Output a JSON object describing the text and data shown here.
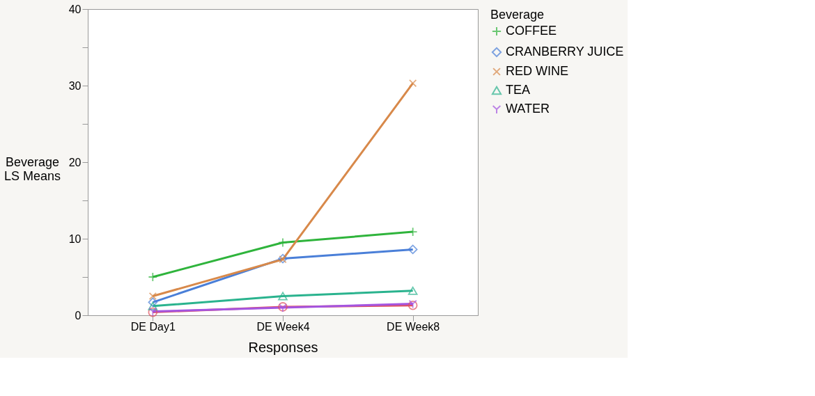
{
  "chart_data": {
    "type": "line",
    "xlabel": "Responses",
    "ylabel": "Beverage\nLS Means",
    "legend_title": "Beverage",
    "legend": "top right",
    "categories": [
      "DE Day1",
      "DE Week4",
      "DE Week8"
    ],
    "ylim": [
      0,
      40
    ],
    "yticks": [
      0,
      {
        "value": 5,
        "label": null
      },
      10,
      {
        "value": 15,
        "label": null
      },
      20,
      {
        "value": 25,
        "label": null
      },
      30,
      {
        "value": 35,
        "label": null
      },
      40
    ],
    "grid": false,
    "series": [
      {
        "color": "#e0505e",
        "marker": "circle",
        "values": [
          0.4,
          1.1,
          1.3
        ]
      },
      {
        "name": "COFFEE",
        "color": "#2fb43c",
        "marker": "plus",
        "values": [
          5.0,
          9.5,
          10.9
        ]
      },
      {
        "name": "CRANBERRY JUICE",
        "color": "#4a7fd8",
        "marker": "diamond",
        "values": [
          1.7,
          7.4,
          8.6
        ]
      },
      {
        "name": "RED WINE",
        "color": "#d8894a",
        "marker": "x",
        "values": [
          2.5,
          7.3,
          30.3
        ]
      },
      {
        "name": "TEA",
        "color": "#2ab38e",
        "marker": "triangle",
        "values": [
          1.2,
          2.5,
          3.2
        ]
      },
      {
        "name": "WATER",
        "color": "#a455e0",
        "marker": "cross",
        "values": [
          0.5,
          1.0,
          1.5
        ]
      }
    ]
  }
}
